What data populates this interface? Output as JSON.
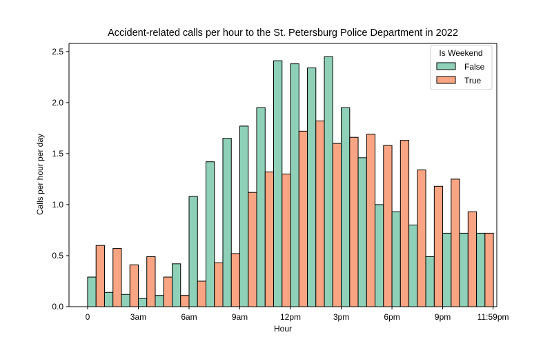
{
  "chart_data": {
    "type": "bar",
    "title": "Accident-related calls per hour to the St. Petersburg Police Department in 2022",
    "xlabel": "Hour",
    "ylabel": "Calls per hour per day",
    "xlim": [
      -1.1,
      24.2
    ],
    "ylim": [
      0,
      2.58
    ],
    "x_ticks": [
      {
        "value": 0,
        "label": "0"
      },
      {
        "value": 3,
        "label": "3am"
      },
      {
        "value": 6,
        "label": "6am"
      },
      {
        "value": 9,
        "label": "9am"
      },
      {
        "value": 12,
        "label": "12pm"
      },
      {
        "value": 15,
        "label": "3pm"
      },
      {
        "value": 18,
        "label": "6pm"
      },
      {
        "value": 21,
        "label": "9pm"
      },
      {
        "value": 23.98,
        "label": "11:59pm"
      }
    ],
    "y_ticks": [
      {
        "value": 0,
        "label": "0.0"
      },
      {
        "value": 0.5,
        "label": "0.5"
      },
      {
        "value": 1.0,
        "label": "1.0"
      },
      {
        "value": 1.5,
        "label": "1.5"
      },
      {
        "value": 2.0,
        "label": "2.0"
      },
      {
        "value": 2.5,
        "label": "2.5"
      }
    ],
    "hours": [
      0,
      1,
      2,
      3,
      4,
      5,
      6,
      7,
      8,
      9,
      10,
      11,
      12,
      13,
      14,
      15,
      16,
      17,
      18,
      19,
      20,
      21,
      22,
      23
    ],
    "legend": {
      "title": "Is Weekend",
      "position": "top-right"
    },
    "grid": false,
    "series": [
      {
        "name": "False",
        "color": "#8fd1b8",
        "values": [
          0.29,
          0.14,
          0.12,
          0.08,
          0.11,
          0.42,
          1.08,
          1.42,
          1.65,
          1.77,
          1.95,
          2.41,
          2.38,
          2.34,
          2.45,
          1.95,
          1.46,
          1.0,
          0.93,
          0.8,
          0.49,
          0.72,
          0.72,
          0.72
        ]
      },
      {
        "name": "True",
        "color": "#f9a482",
        "values": [
          0.6,
          0.57,
          0.41,
          0.49,
          0.29,
          0.11,
          0.25,
          0.43,
          0.52,
          1.12,
          1.32,
          1.3,
          1.72,
          1.82,
          1.6,
          1.66,
          1.69,
          1.58,
          1.63,
          1.34,
          1.18,
          1.25,
          0.93,
          0.72
        ]
      }
    ]
  }
}
